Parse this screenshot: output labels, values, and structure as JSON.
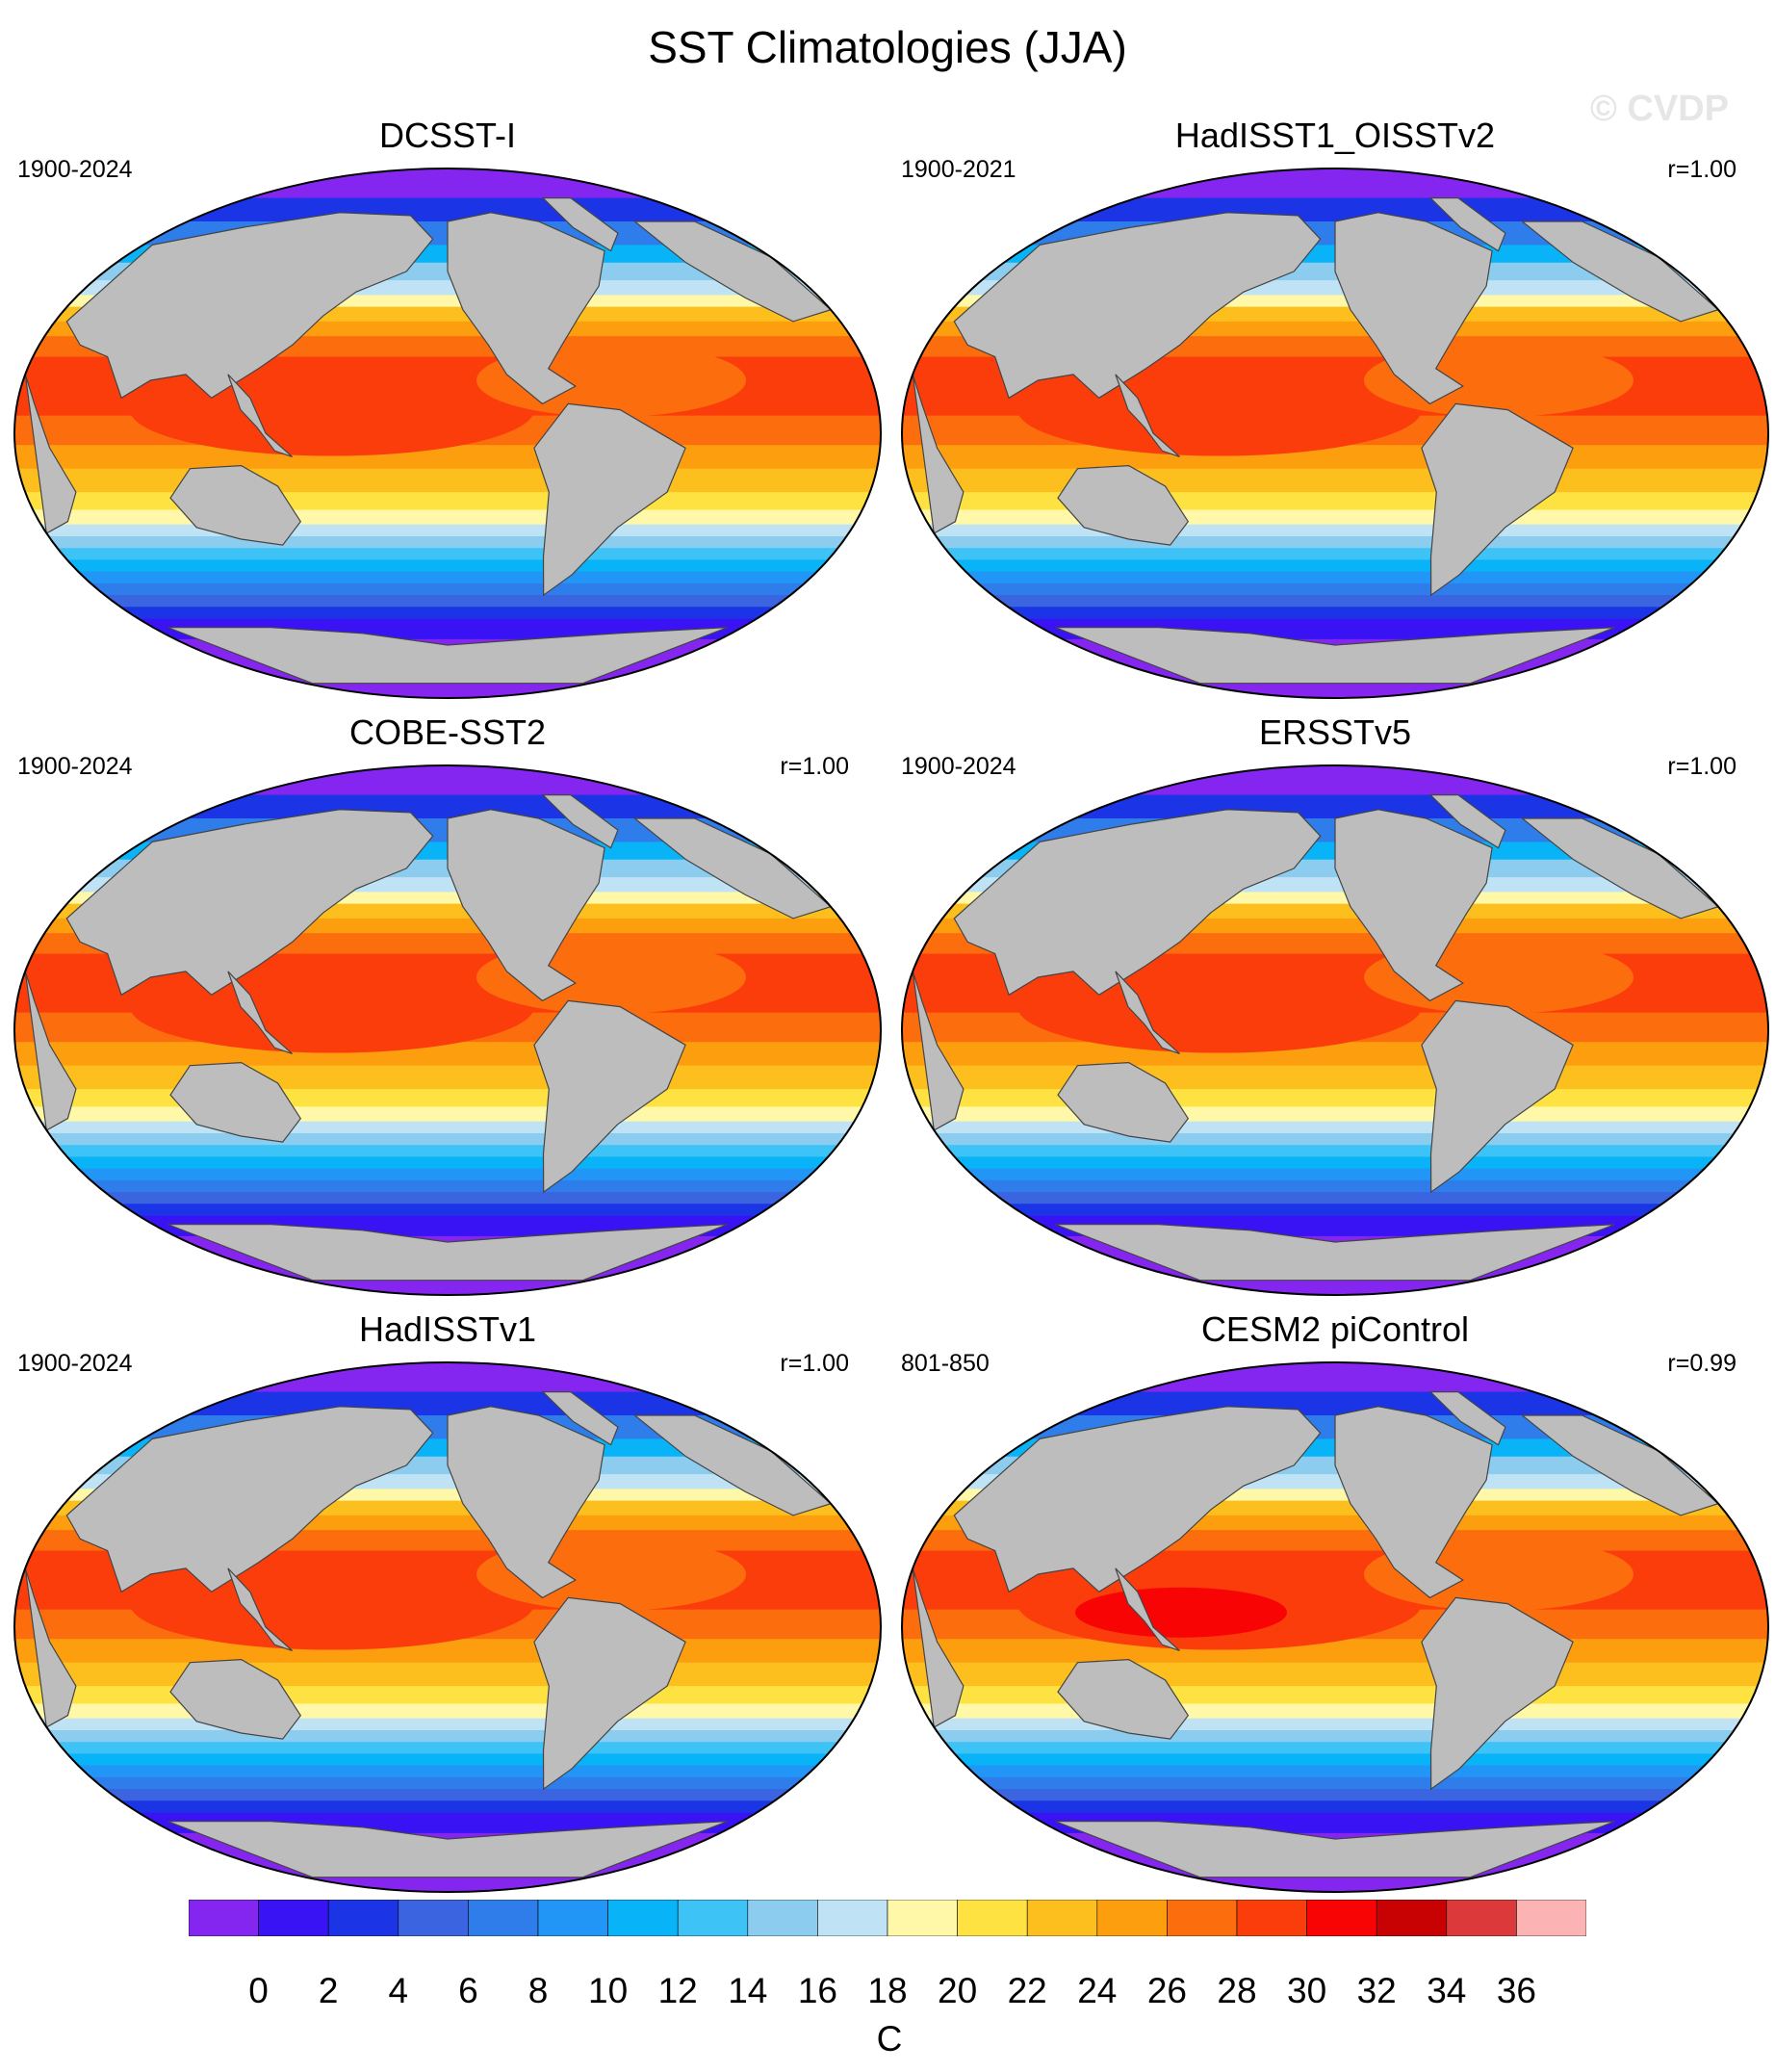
{
  "title": "SST Climatologies (JJA)",
  "watermark": "© CVDP",
  "panels": [
    {
      "name": "DCSST-I",
      "period": "1900-2024",
      "corr": ""
    },
    {
      "name": "HadISST1_OISSTv2",
      "period": "1900-2021",
      "corr": "r=1.00"
    },
    {
      "name": "COBE-SST2",
      "period": "1900-2024",
      "corr": "r=1.00"
    },
    {
      "name": "ERSSTv5",
      "period": "1900-2024",
      "corr": "r=1.00"
    },
    {
      "name": "HadISSTv1",
      "period": "1900-2024",
      "corr": "r=1.00"
    },
    {
      "name": "CESM2 piControl",
      "period": "801-850",
      "corr": "r=0.99"
    }
  ],
  "colorbar": {
    "units": "C",
    "labels": [
      "0",
      "2",
      "4",
      "6",
      "8",
      "10",
      "12",
      "14",
      "16",
      "18",
      "20",
      "22",
      "24",
      "26",
      "28",
      "30",
      "32",
      "34",
      "36"
    ],
    "colors": [
      "#8526f0",
      "#3a13f5",
      "#1a34e6",
      "#3b64e0",
      "#2f7deb",
      "#2196f6",
      "#08b4f7",
      "#3ec3f7",
      "#8ccdef",
      "#bfe3f5",
      "#fff8a8",
      "#fde242",
      "#fcbf1e",
      "#fd9e0f",
      "#fc6d0d",
      "#fb3d0b",
      "#f90405",
      "#c80202",
      "#dc3a3a",
      "#fbb3b3"
    ]
  },
  "map_colors": {
    "land": "#bdbdbd",
    "polar_ice": "#8526f0"
  }
}
